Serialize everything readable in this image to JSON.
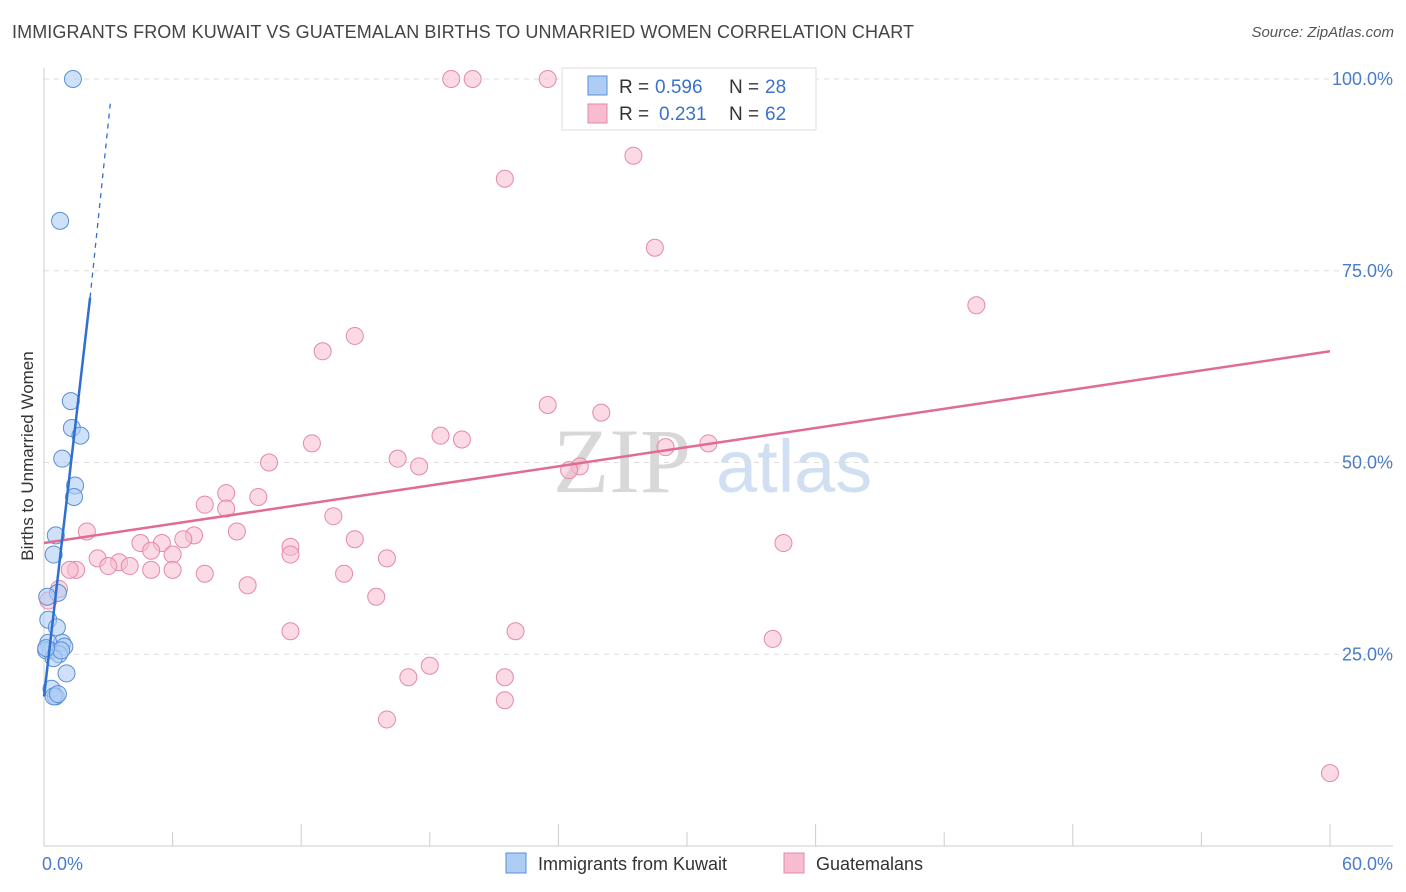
{
  "title": "IMMIGRANTS FROM KUWAIT VS GUATEMALAN BIRTHS TO UNMARRIED WOMEN CORRELATION CHART",
  "source": "Source: ZipAtlas.com",
  "watermark": {
    "zip": "ZIP",
    "atlas": "atlas"
  },
  "colors": {
    "kuwait_fill": "#aecdf5",
    "kuwait_stroke": "#5b8fd6",
    "kuwait_line": "#2f6fd0",
    "guatemalan_fill": "#f7bcd0",
    "guatemalan_stroke": "#e38aa8",
    "guatemalan_line": "#e06b94",
    "tick_label": "#4a7cc9",
    "grid": "#dddddd"
  },
  "legend": {
    "rows": [
      {
        "r_label": "R = ",
        "r_value": "0.596",
        "n_label": "N = ",
        "n_value": "28"
      },
      {
        "r_label": "R = ",
        "r_value": "0.231",
        "n_label": "N = ",
        "n_value": "62"
      }
    ]
  },
  "chart_data": {
    "type": "scatter",
    "title": "IMMIGRANTS FROM KUWAIT VS GUATEMALAN BIRTHS TO UNMARRIED WOMEN CORRELATION CHART",
    "xlabel": "",
    "ylabel": "Births to Unmarried Women",
    "xlim": [
      0,
      60
    ],
    "ylim": [
      0,
      100
    ],
    "x_tick_labels": [
      "0.0%",
      "60.0%"
    ],
    "y_ticks": [
      25,
      50,
      75,
      100
    ],
    "y_tick_labels": [
      "25.0%",
      "50.0%",
      "75.0%",
      "100.0%"
    ],
    "grid": true,
    "legend_position": "top-center",
    "series": [
      {
        "name": "Immigrants from Kuwait",
        "R": 0.596,
        "N": 28,
        "trend": {
          "x0": 0.0,
          "y0": 19.5,
          "x1": 2.15,
          "y1": 71.5,
          "dash_x1": 3.1,
          "dash_y1": 97.0
        },
        "points": [
          [
            1.35,
            100.0
          ],
          [
            0.75,
            81.5
          ],
          [
            1.25,
            58.0
          ],
          [
            1.3,
            54.5
          ],
          [
            1.7,
            53.5
          ],
          [
            0.85,
            50.5
          ],
          [
            1.45,
            47.0
          ],
          [
            1.4,
            45.5
          ],
          [
            0.55,
            40.5
          ],
          [
            0.45,
            38.0
          ],
          [
            0.65,
            33.0
          ],
          [
            0.15,
            32.5
          ],
          [
            0.2,
            29.5
          ],
          [
            0.6,
            28.5
          ],
          [
            0.85,
            26.5
          ],
          [
            0.2,
            26.5
          ],
          [
            0.3,
            25.5
          ],
          [
            0.1,
            25.5
          ],
          [
            0.95,
            26.0
          ],
          [
            0.7,
            25.0
          ],
          [
            0.45,
            24.5
          ],
          [
            0.8,
            25.5
          ],
          [
            1.05,
            22.5
          ],
          [
            0.35,
            20.5
          ],
          [
            0.55,
            19.5
          ],
          [
            0.45,
            19.5
          ],
          [
            0.65,
            19.8
          ],
          [
            0.1,
            25.8
          ]
        ]
      },
      {
        "name": "Guatemalans",
        "R": 0.231,
        "N": 62,
        "trend": {
          "x0": 0.0,
          "y0": 39.5,
          "x1": 60.0,
          "y1": 64.5
        },
        "points": [
          [
            19.0,
            100.0
          ],
          [
            20.0,
            100.0
          ],
          [
            23.5,
            100.0
          ],
          [
            27.5,
            90.0
          ],
          [
            21.5,
            87.0
          ],
          [
            28.5,
            78.0
          ],
          [
            43.5,
            70.5
          ],
          [
            14.5,
            66.5
          ],
          [
            13.0,
            64.5
          ],
          [
            23.5,
            57.5
          ],
          [
            26.0,
            56.5
          ],
          [
            18.5,
            53.5
          ],
          [
            19.5,
            53.0
          ],
          [
            12.5,
            52.5
          ],
          [
            29.0,
            52.0
          ],
          [
            31.0,
            52.5
          ],
          [
            16.5,
            50.5
          ],
          [
            10.5,
            50.0
          ],
          [
            17.5,
            49.5
          ],
          [
            25.0,
            49.5
          ],
          [
            24.5,
            49.0
          ],
          [
            8.5,
            46.0
          ],
          [
            10.0,
            45.5
          ],
          [
            7.5,
            44.5
          ],
          [
            8.5,
            44.0
          ],
          [
            13.5,
            43.0
          ],
          [
            2.0,
            41.0
          ],
          [
            9.0,
            41.0
          ],
          [
            7.0,
            40.5
          ],
          [
            6.5,
            40.0
          ],
          [
            14.5,
            40.0
          ],
          [
            5.5,
            39.5
          ],
          [
            11.5,
            39.0
          ],
          [
            4.5,
            39.5
          ],
          [
            34.5,
            39.5
          ],
          [
            5.0,
            38.5
          ],
          [
            6.0,
            38.0
          ],
          [
            11.5,
            38.0
          ],
          [
            16.0,
            37.5
          ],
          [
            2.5,
            37.5
          ],
          [
            3.5,
            37.0
          ],
          [
            4.0,
            36.5
          ],
          [
            3.0,
            36.5
          ],
          [
            1.5,
            36.0
          ],
          [
            5.0,
            36.0
          ],
          [
            1.2,
            36.0
          ],
          [
            6.0,
            36.0
          ],
          [
            7.5,
            35.5
          ],
          [
            14.0,
            35.5
          ],
          [
            9.5,
            34.0
          ],
          [
            0.7,
            33.5
          ],
          [
            15.5,
            32.5
          ],
          [
            0.2,
            32.0
          ],
          [
            11.5,
            28.0
          ],
          [
            22.0,
            28.0
          ],
          [
            34.0,
            27.0
          ],
          [
            18.0,
            23.5
          ],
          [
            17.0,
            22.0
          ],
          [
            21.5,
            22.0
          ],
          [
            21.5,
            19.0
          ],
          [
            16.0,
            16.5
          ],
          [
            60.0,
            9.5
          ]
        ]
      }
    ]
  },
  "bottom_legend": [
    {
      "label": "Immigrants from Kuwait"
    },
    {
      "label": "Guatemalans"
    }
  ]
}
